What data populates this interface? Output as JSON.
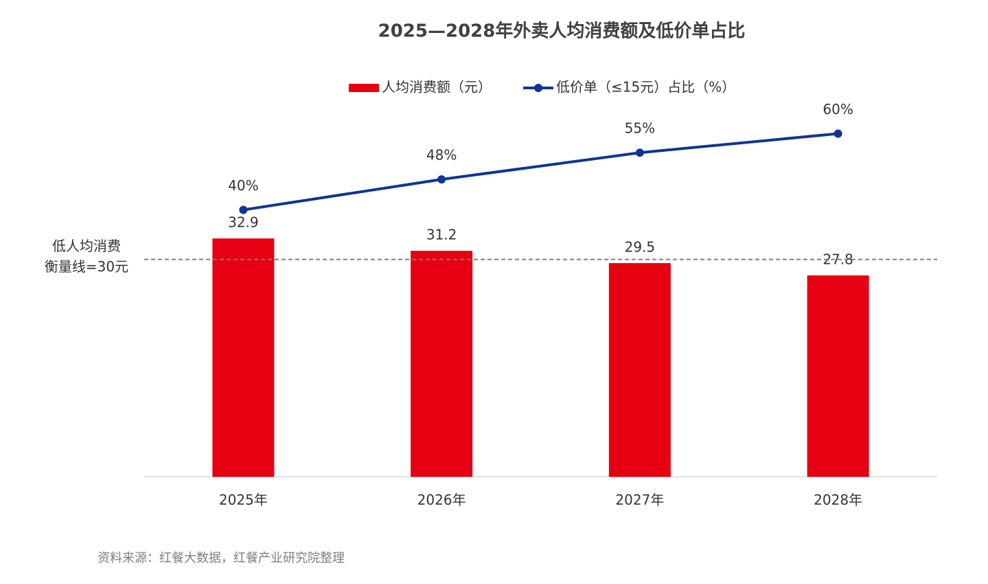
{
  "chart_data": {
    "type": "bar-line",
    "title": "2025—2028年外卖人均消费额及低价单占比",
    "categories": [
      "2025年",
      "2026年",
      "2027年",
      "2028年"
    ],
    "series": [
      {
        "name": "人均消费额（元）",
        "type": "bar",
        "color": "#e60012",
        "values": [
          32.9,
          31.2,
          29.5,
          27.8
        ]
      },
      {
        "name": "低价单（≤15元）占比（%）",
        "type": "line",
        "axis": "y2",
        "color": "#0e3596",
        "values": [
          40,
          48,
          55,
          60
        ],
        "value_labels": [
          "40%",
          "48%",
          "55%",
          "60%"
        ]
      }
    ],
    "ylim": [
      0,
      55
    ],
    "y2lim": [
      -30,
      74.5
    ],
    "reference_line": {
      "value": 30,
      "label": [
        "低人均消费",
        "衡量线=30元"
      ]
    },
    "legend": "top",
    "source": "资料来源：红餐大数据，红餐产业研究院整理"
  }
}
